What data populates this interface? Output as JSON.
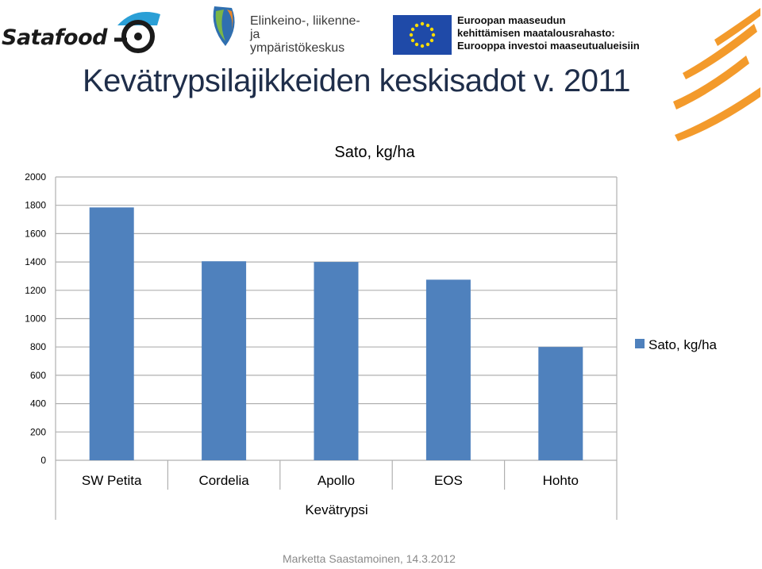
{
  "logos": {
    "satafood": "Satafood",
    "ely": [
      "Elinkeino-, liikenne- ja",
      "ympäristökeskus"
    ],
    "eu": [
      "Euroopan maaseudun",
      "kehittämisen maatalousrahasto:",
      "Eurooppa investoi maaseutualueisiin"
    ]
  },
  "slide_title": "Kevätrypsilajikkeiden keskisadot v. 2011",
  "footer": "Marketta Saastamoinen, 14.3.2012",
  "chart_data": {
    "type": "bar",
    "title": "Sato, kg/ha",
    "xlabel": "Kevätrypsi",
    "ylabel": "",
    "categories": [
      "SW Petita",
      "Cordelia",
      "Apollo",
      "EOS",
      "Hohto"
    ],
    "series": [
      {
        "name": "Sato, kg/ha",
        "values": [
          1785,
          1405,
          1400,
          1275,
          800
        ],
        "color": "#4f81bd"
      }
    ],
    "ylim": [
      0,
      2000
    ],
    "yticks": [
      0,
      200,
      400,
      600,
      800,
      1000,
      1200,
      1400,
      1600,
      1800,
      2000
    ],
    "grid": true,
    "legend": "right"
  }
}
